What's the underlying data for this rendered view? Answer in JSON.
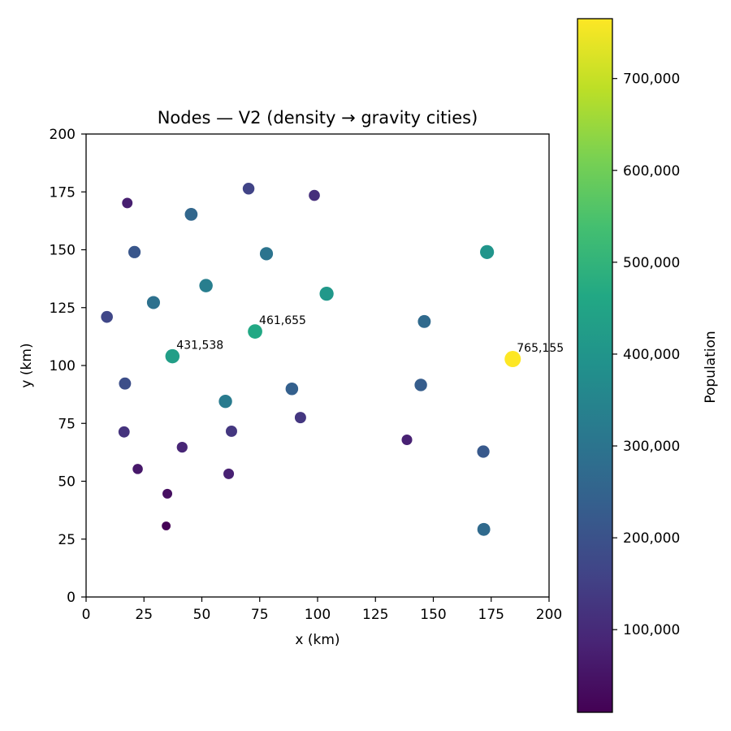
{
  "chart_data": {
    "type": "scatter",
    "title": "Nodes — V2 (density → gravity cities)",
    "xlabel": "x (km)",
    "ylabel": "y (km)",
    "xlim": [
      0,
      200
    ],
    "ylim": [
      0,
      200
    ],
    "xticks": [
      0,
      25,
      50,
      75,
      100,
      125,
      150,
      175,
      200
    ],
    "yticks": [
      0,
      25,
      50,
      75,
      100,
      125,
      150,
      175,
      200
    ],
    "grid": false,
    "colormap": "viridis",
    "colorbar": {
      "label": "Population",
      "range": [
        10000,
        765155
      ],
      "ticks": [
        100000,
        200000,
        300000,
        400000,
        500000,
        600000,
        700000
      ],
      "tick_labels": [
        "100,000",
        "200,000",
        "300,000",
        "400,000",
        "500,000",
        "600,000",
        "700,000"
      ]
    },
    "points": [
      {
        "x": 17.8,
        "y": 170.2,
        "population": 75000
      },
      {
        "x": 70.2,
        "y": 176.4,
        "population": 160000
      },
      {
        "x": 98.6,
        "y": 173.5,
        "population": 110000
      },
      {
        "x": 45.4,
        "y": 165.3,
        "population": 260000
      },
      {
        "x": 20.9,
        "y": 149.0,
        "population": 210000
      },
      {
        "x": 77.9,
        "y": 148.3,
        "population": 300000
      },
      {
        "x": 173.2,
        "y": 149.0,
        "population": 400000
      },
      {
        "x": 51.8,
        "y": 134.5,
        "population": 330000
      },
      {
        "x": 103.9,
        "y": 131.0,
        "population": 410000
      },
      {
        "x": 9.0,
        "y": 121.0,
        "population": 170000
      },
      {
        "x": 29.1,
        "y": 127.2,
        "population": 290000
      },
      {
        "x": 146.1,
        "y": 119.0,
        "population": 270000
      },
      {
        "x": 73.0,
        "y": 114.7,
        "population": 461655
      },
      {
        "x": 37.3,
        "y": 104.0,
        "population": 431538
      },
      {
        "x": 184.3,
        "y": 102.8,
        "population": 765155
      },
      {
        "x": 16.8,
        "y": 92.2,
        "population": 190000
      },
      {
        "x": 144.6,
        "y": 91.6,
        "population": 230000
      },
      {
        "x": 88.9,
        "y": 89.9,
        "population": 240000
      },
      {
        "x": 60.2,
        "y": 84.5,
        "population": 320000
      },
      {
        "x": 92.6,
        "y": 77.5,
        "population": 130000
      },
      {
        "x": 16.4,
        "y": 71.3,
        "population": 120000
      },
      {
        "x": 62.8,
        "y": 71.6,
        "population": 130000
      },
      {
        "x": 138.6,
        "y": 67.9,
        "population": 80000
      },
      {
        "x": 41.5,
        "y": 64.7,
        "population": 90000
      },
      {
        "x": 171.6,
        "y": 62.8,
        "population": 220000
      },
      {
        "x": 22.3,
        "y": 55.3,
        "population": 60000
      },
      {
        "x": 61.6,
        "y": 53.2,
        "population": 80000
      },
      {
        "x": 35.1,
        "y": 44.6,
        "population": 40000
      },
      {
        "x": 34.6,
        "y": 30.7,
        "population": 15000
      },
      {
        "x": 171.8,
        "y": 29.2,
        "population": 270000
      }
    ],
    "annotations": [
      {
        "text": "461,655",
        "x": 73.0,
        "y": 114.7
      },
      {
        "text": "431,538",
        "x": 37.3,
        "y": 104.0
      },
      {
        "text": "765,155",
        "x": 184.3,
        "y": 102.8
      }
    ]
  }
}
